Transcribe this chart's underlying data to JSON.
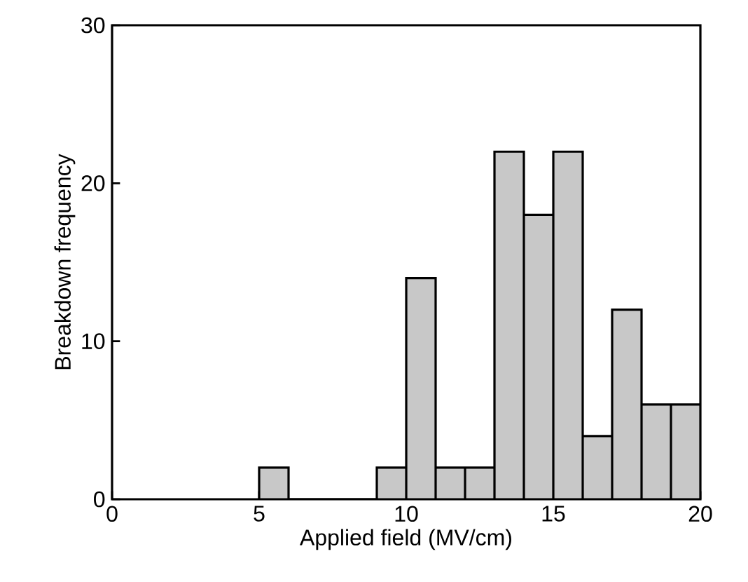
{
  "chart_data": {
    "type": "histogram",
    "xlabel": "Applied field (MV/cm)",
    "ylabel": "Breakdown frequency",
    "bins": [
      5,
      6,
      7,
      8,
      9,
      10,
      11,
      12,
      13,
      14,
      15,
      16,
      17,
      18,
      19,
      20
    ],
    "values": [
      2,
      0,
      0,
      0,
      2,
      14,
      2,
      2,
      22,
      18,
      22,
      4,
      12,
      6,
      6
    ],
    "color": "#c8c8c8",
    "xlim": [
      0,
      20
    ],
    "xticks": [
      0,
      5,
      10,
      15,
      20
    ],
    "ylim": [
      0,
      30
    ],
    "yticks": [
      0,
      10,
      20,
      30
    ],
    "grid": false
  }
}
